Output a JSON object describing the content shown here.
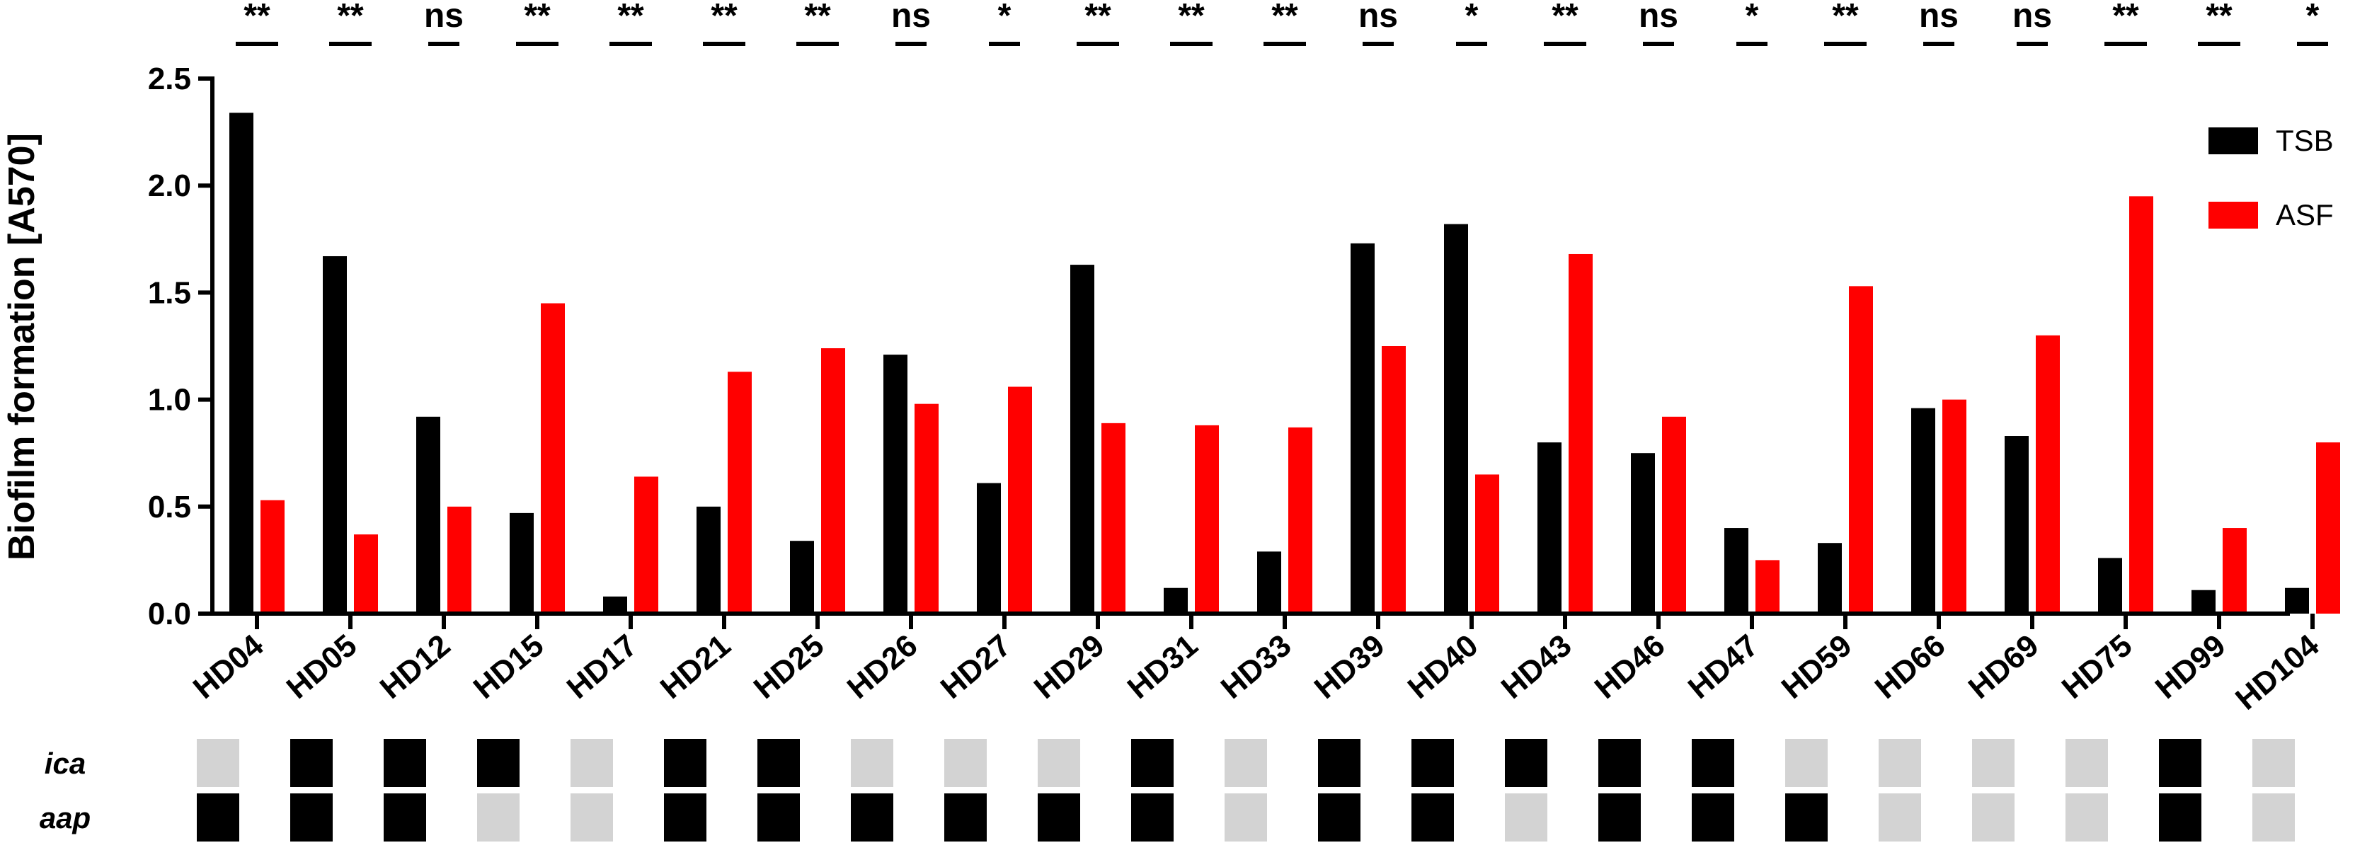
{
  "chart_data": {
    "type": "bar",
    "ylabel": "Biofilm formation [A570]",
    "xlabel": "",
    "ylim": [
      0,
      2.5
    ],
    "yticks": [
      "0.0",
      "0.5",
      "1.0",
      "1.5",
      "2.0",
      "2.5"
    ],
    "categories": [
      "HD04",
      "HD05",
      "HD12",
      "HD15",
      "HD17",
      "HD21",
      "HD25",
      "HD26",
      "HD27",
      "HD29",
      "HD31",
      "HD33",
      "HD39",
      "HD40",
      "HD43",
      "HD46",
      "HD47",
      "HD59",
      "HD66",
      "HD69",
      "HD75",
      "HD99",
      "HD104"
    ],
    "series": [
      {
        "name": "TSB",
        "color": "#000000",
        "values": [
          2.34,
          1.67,
          0.92,
          0.47,
          0.08,
          0.5,
          0.34,
          1.21,
          0.61,
          1.63,
          0.12,
          0.29,
          1.73,
          1.82,
          0.8,
          0.75,
          0.4,
          0.33,
          0.96,
          0.83,
          0.26,
          0.11,
          0.12
        ]
      },
      {
        "name": "ASF",
        "color": "#ff0000",
        "values": [
          0.53,
          0.37,
          0.5,
          1.45,
          0.64,
          1.13,
          1.24,
          0.98,
          1.06,
          0.89,
          0.88,
          0.87,
          1.25,
          0.65,
          1.68,
          0.92,
          0.25,
          1.53,
          1.0,
          1.3,
          1.95,
          0.4,
          0.8
        ]
      }
    ],
    "significance": [
      "**",
      "**",
      "ns",
      "**",
      "**",
      "**",
      "**",
      "ns",
      "*",
      "**",
      "**",
      "**",
      "ns",
      "*",
      "**",
      "ns",
      "*",
      "**",
      "ns",
      "ns",
      "**",
      "**",
      "*"
    ],
    "legend_position": "right",
    "grid": false,
    "genes": [
      {
        "name": "ica",
        "present": [
          false,
          true,
          true,
          true,
          false,
          true,
          true,
          false,
          false,
          false,
          true,
          false,
          true,
          true,
          true,
          true,
          true,
          false,
          false,
          false,
          false,
          true,
          false
        ]
      },
      {
        "name": "aap",
        "present": [
          true,
          true,
          true,
          false,
          false,
          true,
          true,
          true,
          true,
          true,
          true,
          false,
          true,
          true,
          false,
          true,
          true,
          true,
          false,
          false,
          false,
          true,
          false
        ]
      }
    ],
    "gene_colors": {
      "present": "#000000",
      "absent": "#d3d3d3"
    }
  }
}
